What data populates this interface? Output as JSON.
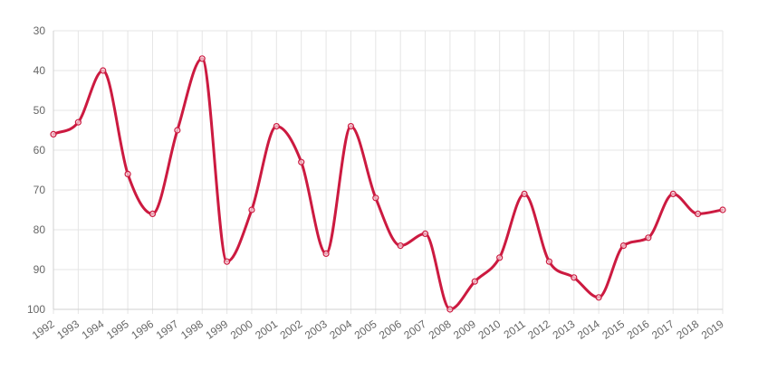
{
  "chart_data": {
    "type": "line",
    "x": [
      "1992",
      "1993",
      "1994",
      "1995",
      "1996",
      "1997",
      "1998",
      "1999",
      "2000",
      "2001",
      "2002",
      "2003",
      "2004",
      "2005",
      "2006",
      "2007",
      "2008",
      "2009",
      "2010",
      "2011",
      "2012",
      "2013",
      "2014",
      "2015",
      "2016",
      "2017",
      "2018",
      "2019"
    ],
    "series": [
      {
        "values": [
          56,
          53,
          40,
          66,
          76,
          55,
          37,
          88,
          75,
          54,
          63,
          86,
          54,
          72,
          84,
          81,
          100,
          93,
          87,
          71,
          88,
          92,
          97,
          84,
          82,
          71,
          76,
          75
        ],
        "color": "#cc1a40"
      }
    ],
    "yaxis": {
      "reversed": true,
      "min": 30,
      "max": 100,
      "ticks": [
        "30",
        "40",
        "50",
        "60",
        "70",
        "80",
        "90",
        "100"
      ]
    },
    "grid": true,
    "legend": "none",
    "title": "",
    "xlabel": "",
    "ylabel": ""
  }
}
